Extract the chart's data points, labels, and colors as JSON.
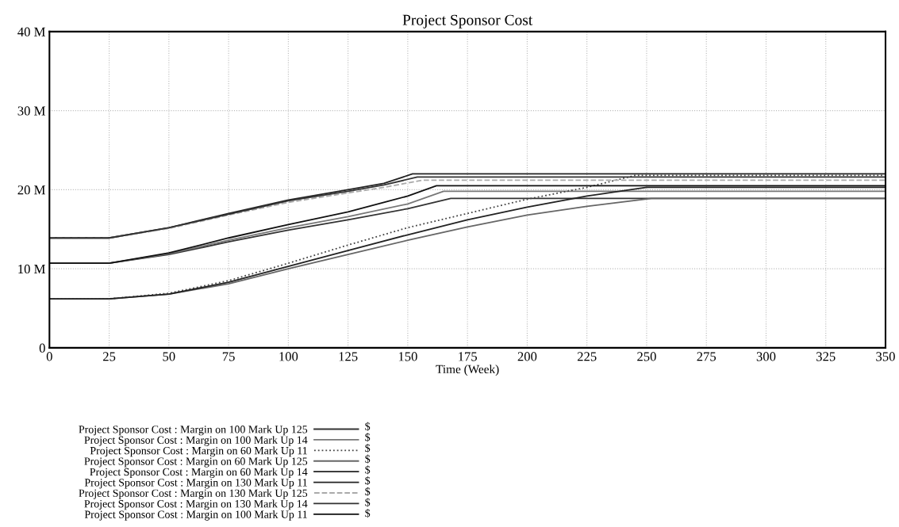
{
  "chart_data": {
    "type": "line",
    "title": "Project Sponsor Cost",
    "xlabel": "Time (Week)",
    "xlim": [
      0,
      350
    ],
    "xticks": [
      0,
      25,
      50,
      75,
      100,
      125,
      150,
      175,
      200,
      225,
      250,
      275,
      300,
      325,
      350
    ],
    "ylim": [
      0,
      40
    ],
    "yticks": [
      {
        "value": 0,
        "label": "0"
      },
      {
        "value": 10,
        "label": "10 M"
      },
      {
        "value": 20,
        "label": "20 M"
      },
      {
        "value": 30,
        "label": "30 M"
      },
      {
        "value": 40,
        "label": "40 M"
      }
    ],
    "grid": true,
    "legend": "bottom",
    "series": [
      {
        "name": "Project Sponsor Cost : Margin on 100 Mark Up 125",
        "color": "#333333",
        "x": [
          0,
          25,
          50,
          75,
          100,
          125,
          150,
          168,
          350
        ],
        "values": [
          10.7,
          10.7,
          11.8,
          13.4,
          14.9,
          16.2,
          17.6,
          18.9,
          18.9
        ]
      },
      {
        "name": "Project Sponsor Cost : Margin on 100 Mark Up 14",
        "color": "#777777",
        "x": [
          0,
          25,
          50,
          75,
          100,
          125,
          150,
          165,
          350
        ],
        "values": [
          10.7,
          10.7,
          11.9,
          13.6,
          15.2,
          16.6,
          18.2,
          19.8,
          19.8
        ]
      },
      {
        "name": "Project Sponsor Cost : Margin on 60 Mark Up 11",
        "color": "#444444",
        "line_style": "dotted",
        "x": [
          0,
          25,
          50,
          75,
          100,
          125,
          150,
          175,
          200,
          225,
          245,
          350
        ],
        "values": [
          6.2,
          6.2,
          6.9,
          8.5,
          10.7,
          13.0,
          15.2,
          17.0,
          18.8,
          20.3,
          21.8,
          21.8
        ]
      },
      {
        "name": "Project Sponsor Cost : Margin on 60 Mark Up 125",
        "color": "#666666",
        "x": [
          0,
          25,
          50,
          75,
          100,
          125,
          150,
          175,
          200,
          225,
          252,
          350
        ],
        "values": [
          6.2,
          6.2,
          6.8,
          8.1,
          10.0,
          11.8,
          13.6,
          15.3,
          16.8,
          17.9,
          18.9,
          18.9
        ]
      },
      {
        "name": "Project Sponsor Cost : Margin on 60 Mark Up 14",
        "color": "#222222",
        "x": [
          0,
          25,
          50,
          75,
          100,
          125,
          150,
          175,
          200,
          225,
          250,
          350
        ],
        "values": [
          6.2,
          6.2,
          6.8,
          8.3,
          10.3,
          12.3,
          14.3,
          16.2,
          17.8,
          19.2,
          20.3,
          20.3
        ]
      },
      {
        "name": "Project Sponsor Cost : Margin on 130 Mark Up 11",
        "color": "#222222",
        "x": [
          0,
          25,
          50,
          75,
          100,
          125,
          140,
          152,
          350
        ],
        "values": [
          13.9,
          13.9,
          15.2,
          17.0,
          18.7,
          20.0,
          20.8,
          22.0,
          22.0
        ]
      },
      {
        "name": "Project Sponsor Cost : Margin on 130 Mark Up 125",
        "color": "#aaaaaa",
        "line_style": "dashed",
        "x": [
          0,
          25,
          50,
          75,
          100,
          125,
          140,
          156,
          350
        ],
        "values": [
          13.9,
          13.9,
          15.1,
          16.8,
          18.4,
          19.6,
          20.3,
          21.2,
          21.2
        ]
      },
      {
        "name": "Project Sponsor Cost : Margin on 130 Mark Up 14",
        "color": "#333333",
        "x": [
          0,
          25,
          50,
          75,
          100,
          125,
          140,
          154,
          350
        ],
        "values": [
          13.9,
          13.9,
          15.2,
          16.9,
          18.6,
          19.8,
          20.6,
          21.6,
          21.6
        ]
      },
      {
        "name": "Project Sponsor Cost : Margin on 100 Mark Up 11",
        "color": "#111111",
        "x": [
          0,
          25,
          50,
          75,
          100,
          125,
          150,
          162,
          350
        ],
        "values": [
          10.7,
          10.7,
          12.0,
          13.9,
          15.6,
          17.2,
          19.2,
          20.5,
          20.5
        ]
      }
    ],
    "annotations": [
      "$",
      "$",
      "$",
      "$",
      "$",
      "$",
      "$",
      "$",
      "$"
    ]
  }
}
